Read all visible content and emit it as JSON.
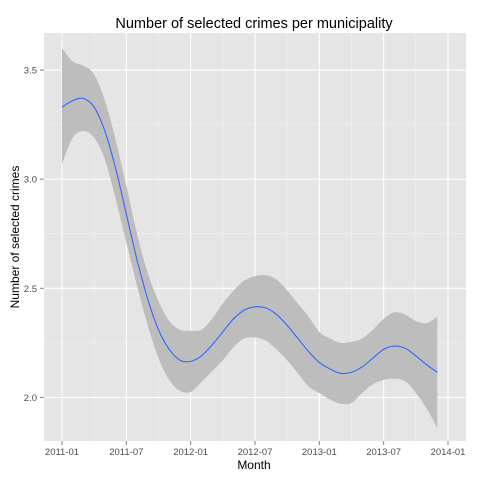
{
  "chart_data": {
    "type": "line",
    "title": "Number of selected crimes per municipality",
    "xlabel": "Month",
    "ylabel": "Number of selected crimes",
    "x_ticks": [
      "2011-01",
      "2011-07",
      "2012-01",
      "2012-07",
      "2013-01",
      "2013-07",
      "2014-01"
    ],
    "y_ticks": [
      "2.0",
      "2.5",
      "3.0",
      "3.5"
    ],
    "ylim": [
      1.8,
      3.67
    ],
    "grid": true,
    "series": [
      {
        "style": "smooth-with-confidence-band",
        "color": "#3366FF",
        "band_color": "#BDBDBD",
        "x": [
          "2011-01",
          "2011-02",
          "2011-03",
          "2011-04",
          "2011-05",
          "2011-06",
          "2011-07",
          "2011-08",
          "2011-09",
          "2011-10",
          "2011-11",
          "2011-12",
          "2012-01",
          "2012-02",
          "2012-03",
          "2012-04",
          "2012-05",
          "2012-06",
          "2012-07",
          "2012-08",
          "2012-09",
          "2012-10",
          "2012-11",
          "2012-12",
          "2013-01",
          "2013-02",
          "2013-03",
          "2013-04",
          "2013-05",
          "2013-06",
          "2013-07",
          "2013-08",
          "2013-09",
          "2013-10",
          "2013-11",
          "2013-12"
        ],
        "y": [
          3.33,
          3.36,
          3.37,
          3.33,
          3.22,
          3.05,
          2.84,
          2.63,
          2.45,
          2.31,
          2.22,
          2.17,
          2.165,
          2.19,
          2.24,
          2.3,
          2.36,
          2.4,
          2.415,
          2.41,
          2.38,
          2.33,
          2.27,
          2.21,
          2.16,
          2.13,
          2.11,
          2.115,
          2.14,
          2.18,
          2.22,
          2.235,
          2.225,
          2.19,
          2.15,
          2.115
        ],
        "lower": [
          3.07,
          3.19,
          3.22,
          3.19,
          3.09,
          2.91,
          2.71,
          2.51,
          2.33,
          2.18,
          2.08,
          2.03,
          2.025,
          2.07,
          2.12,
          2.17,
          2.23,
          2.27,
          2.275,
          2.26,
          2.22,
          2.17,
          2.11,
          2.05,
          2.02,
          1.99,
          1.97,
          1.975,
          2.02,
          2.06,
          2.08,
          2.085,
          2.075,
          2.02,
          1.95,
          1.86
        ],
        "upper": [
          3.6,
          3.54,
          3.52,
          3.48,
          3.36,
          3.18,
          2.97,
          2.75,
          2.57,
          2.44,
          2.35,
          2.31,
          2.305,
          2.31,
          2.36,
          2.43,
          2.49,
          2.535,
          2.555,
          2.56,
          2.54,
          2.49,
          2.43,
          2.37,
          2.3,
          2.27,
          2.25,
          2.255,
          2.27,
          2.31,
          2.36,
          2.39,
          2.38,
          2.35,
          2.34,
          2.37
        ]
      }
    ]
  }
}
